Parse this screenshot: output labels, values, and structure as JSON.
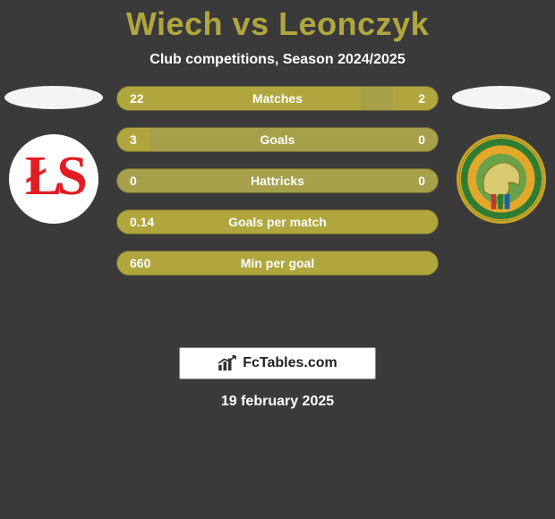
{
  "title_color": "#b1a63e",
  "title": "Wiech vs Leonczyk",
  "subtitle": "Club competitions, Season 2024/2025",
  "left_ellipse_color": "#f4f4f4",
  "right_ellipse_color": "#f4f4f4",
  "bars": [
    {
      "label": "Matches",
      "left": "22",
      "right": "2",
      "left_pct": 76,
      "right_pct": 14
    },
    {
      "label": "Goals",
      "left": "3",
      "right": "0",
      "left_pct": 10,
      "right_pct": 0
    },
    {
      "label": "Hattricks",
      "left": "0",
      "right": "0",
      "left_pct": 0,
      "right_pct": 0
    },
    {
      "label": "Goals per match",
      "left": "0.14",
      "right": "",
      "left_pct": 100,
      "right_pct": 0
    },
    {
      "label": "Min per goal",
      "left": "660",
      "right": "",
      "left_pct": 100,
      "right_pct": 0
    }
  ],
  "bar_track_color": "#a7a04a",
  "bar_fill_color": "#b1a63e",
  "branding_text": "FcTables.com",
  "date": "19 february 2025",
  "left_logo_text": "ŁS"
}
